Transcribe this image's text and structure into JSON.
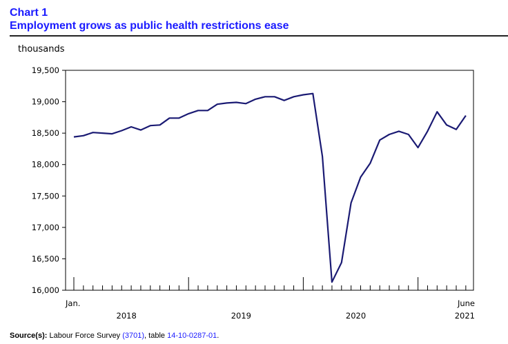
{
  "title_block": {
    "number": "Chart 1",
    "title": "Employment grows as public health restrictions ease"
  },
  "source": {
    "label": "Source(s):",
    "text1": "Labour Force Survey",
    "code": "(3701)",
    "text2": ", table",
    "table_id": "14-10-0287-01",
    "end": "."
  },
  "colors": {
    "title": "#1a1aff",
    "line": "#1a1a73",
    "link": "#1a1aff"
  },
  "chart_data": {
    "type": "line",
    "title": "Employment grows as public health restrictions ease",
    "ylabel": "thousands",
    "xlabel": "",
    "ylim": [
      16000,
      19500
    ],
    "yticks": [
      16000,
      16500,
      17000,
      17500,
      18000,
      18500,
      19000,
      19500
    ],
    "ytick_labels": [
      "16,000",
      "16,500",
      "17,000",
      "17,500",
      "18,000",
      "18,500",
      "19,000",
      "19,500"
    ],
    "x_start_label": "Jan.",
    "x_end_label": "June",
    "x_year_labels": [
      "2018",
      "2019",
      "2020",
      "2021"
    ],
    "grid": false,
    "series": [
      {
        "name": "Employment",
        "start": "2018-01",
        "values": [
          18440,
          18460,
          18510,
          18500,
          18490,
          18540,
          18600,
          18550,
          18620,
          18630,
          18740,
          18740,
          18810,
          18860,
          18860,
          18960,
          18980,
          18990,
          18970,
          19040,
          19080,
          19080,
          19020,
          19080,
          19110,
          19130,
          18130,
          16130,
          16440,
          17390,
          17800,
          18020,
          18390,
          18480,
          18530,
          18480,
          18270,
          18530,
          18840,
          18630,
          18560,
          18780
        ]
      }
    ]
  }
}
